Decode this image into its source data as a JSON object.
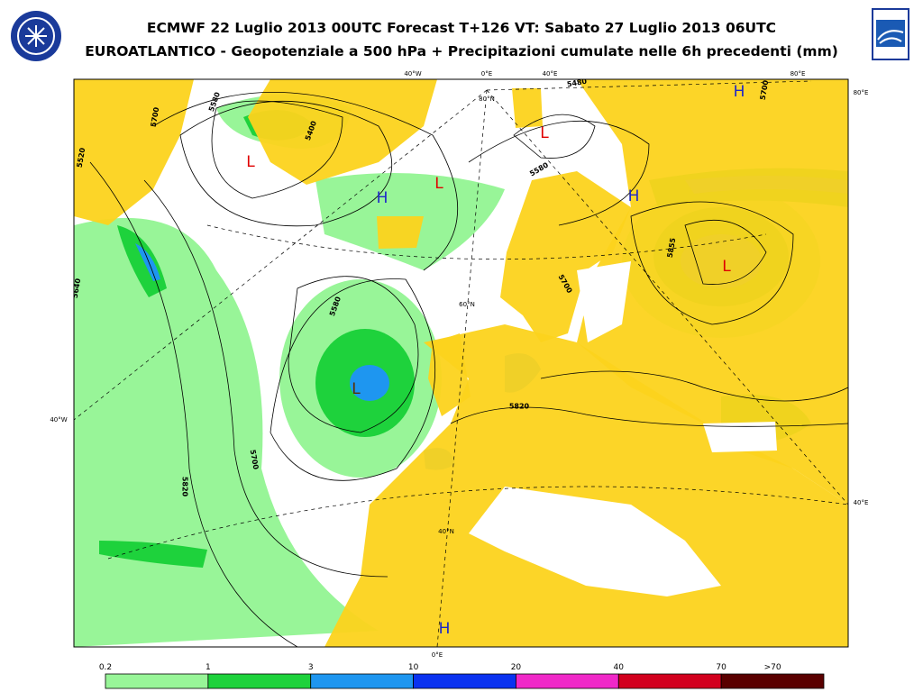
{
  "header": {
    "title_lines": [
      "ECMWF 22 Luglio 2013 00UTC Forecast T+126 VT: Sabato 27 Luglio 2013 06UTC",
      "EUROATLANTICO - Geopotenziale a 500 hPa + Precipitazioni cumulate nelle 6h precedenti (mm)"
    ]
  },
  "map": {
    "graticule_labels": [
      "40°W",
      "0°E",
      "40°E",
      "80°E",
      "80°E",
      "40°E",
      "40°W",
      "0°E",
      "80°N",
      "60°N",
      "40°N"
    ],
    "contour_labels": [
      "5400",
      "5580",
      "5700",
      "5520",
      "5480",
      "5580",
      "5700",
      "5700",
      "5855",
      "5580",
      "5640",
      "5700",
      "5820",
      "5820"
    ],
    "pressure_centers": [
      "H",
      "H",
      "H",
      "H",
      "L",
      "L",
      "L",
      "L",
      "L"
    ]
  },
  "legend": {
    "labels": [
      "0.2",
      "1",
      "3",
      "10",
      "20",
      "40",
      "70",
      ">70"
    ],
    "colors": [
      "#98f598",
      "#1ed23c",
      "#1e96f0",
      "#0a32f0",
      "#f028c8",
      "#d2001e",
      "#5a0000"
    ]
  }
}
